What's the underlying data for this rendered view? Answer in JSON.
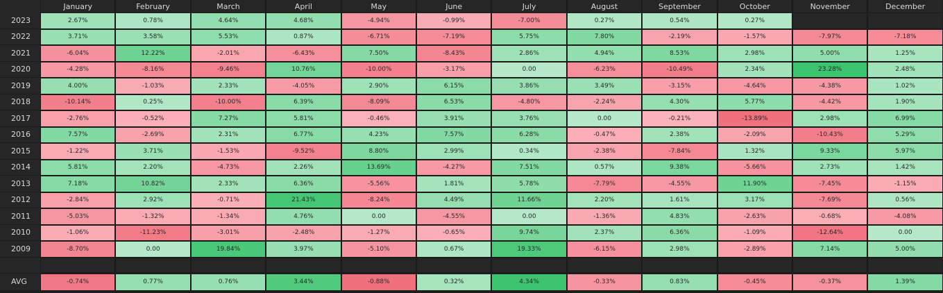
{
  "chart_data": {
    "type": "heatmap",
    "title": "",
    "columns": [
      "January",
      "February",
      "March",
      "April",
      "May",
      "June",
      "July",
      "August",
      "September",
      "October",
      "November",
      "December"
    ],
    "rows": [
      {
        "label": "2023",
        "values": [
          "2.67%",
          "0.78%",
          "4.64%",
          "4.68%",
          "-4.94%",
          "-0.99%",
          "-7.00%",
          "0.27%",
          "0.54%",
          "0.27%",
          null,
          null
        ]
      },
      {
        "label": "2022",
        "values": [
          "3.71%",
          "3.58%",
          "5.53%",
          "0.87%",
          "-6.71%",
          "-7.19%",
          "5.75%",
          "7.80%",
          "-2.19%",
          "-1.57%",
          "-7.97%",
          "-7.18%"
        ]
      },
      {
        "label": "2021",
        "values": [
          "-6.04%",
          "12.22%",
          "-2.01%",
          "-6.43%",
          "7.50%",
          "-8.43%",
          "2.86%",
          "4.94%",
          "8.53%",
          "2.98%",
          "5.00%",
          "1.25%"
        ]
      },
      {
        "label": "2020",
        "values": [
          "-4.28%",
          "-8.16%",
          "-9.46%",
          "10.76%",
          "-10.00%",
          "-3.17%",
          "0.00",
          "-6.23%",
          "-10.49%",
          "2.34%",
          "23.28%",
          "2.48%"
        ]
      },
      {
        "label": "2019",
        "values": [
          "4.00%",
          "-1.03%",
          "2.33%",
          "-4.05%",
          "2.90%",
          "6.15%",
          "3.86%",
          "3.49%",
          "-3.15%",
          "-4.64%",
          "-4.38%",
          "1.02%"
        ]
      },
      {
        "label": "2018",
        "values": [
          "-10.14%",
          "0.25%",
          "-10.00%",
          "6.39%",
          "-8.09%",
          "6.53%",
          "-4.80%",
          "-2.24%",
          "4.30%",
          "5.77%",
          "-4.42%",
          "1.90%"
        ]
      },
      {
        "label": "2017",
        "values": [
          "-2.76%",
          "-0.52%",
          "7.27%",
          "5.81%",
          "-0.46%",
          "3.91%",
          "3.76%",
          "0.00",
          "-0.21%",
          "-13.89%",
          "2.98%",
          "6.99%"
        ]
      },
      {
        "label": "2016",
        "values": [
          "7.57%",
          "-2.69%",
          "2.31%",
          "6.77%",
          "4.23%",
          "7.57%",
          "6.28%",
          "-0.47%",
          "2.38%",
          "-2.09%",
          "-10.43%",
          "5.29%"
        ]
      },
      {
        "label": "2015",
        "values": [
          "-1.22%",
          "3.71%",
          "-1.53%",
          "-9.52%",
          "8.80%",
          "2.99%",
          "0.34%",
          "-2.38%",
          "-7.84%",
          "1.32%",
          "9.33%",
          "5.97%"
        ]
      },
      {
        "label": "2014",
        "values": [
          "5.81%",
          "2.20%",
          "-4.73%",
          "2.26%",
          "13.69%",
          "-4.27%",
          "7.51%",
          "0.57%",
          "9.38%",
          "-5.66%",
          "2.73%",
          "1.42%"
        ]
      },
      {
        "label": "2013",
        "values": [
          "7.18%",
          "10.82%",
          "2.33%",
          "6.36%",
          "-5.56%",
          "1.81%",
          "5.78%",
          "-7.79%",
          "-4.55%",
          "11.90%",
          "-7.45%",
          "-1.15%"
        ]
      },
      {
        "label": "2012",
        "values": [
          "-2.84%",
          "2.92%",
          "-0.71%",
          "21.43%",
          "-8.24%",
          "4.49%",
          "11.66%",
          "2.20%",
          "1.61%",
          "3.17%",
          "-7.69%",
          "0.56%"
        ]
      },
      {
        "label": "2011",
        "values": [
          "-5.03%",
          "-1.32%",
          "-1.34%",
          "4.76%",
          "0.00",
          "-4.55%",
          "0.00",
          "-1.36%",
          "4.83%",
          "-2.63%",
          "-0.68%",
          "-4.08%"
        ]
      },
      {
        "label": "2010",
        "values": [
          "-1.06%",
          "-11.23%",
          "-3.01%",
          "-2.48%",
          "-1.27%",
          "-0.65%",
          "9.74%",
          "2.37%",
          "6.36%",
          "-1.09%",
          "-12.64%",
          "0.00"
        ]
      },
      {
        "label": "2009",
        "values": [
          "-8.70%",
          "0.00",
          "19.84%",
          "3.97%",
          "-5.10%",
          "0.67%",
          "19.33%",
          "-6.15%",
          "2.98%",
          "-2.89%",
          "7.14%",
          "5.00%"
        ]
      }
    ],
    "avg": {
      "label": "AVG",
      "values": [
        "-0.74%",
        "0.77%",
        "0.76%",
        "3.44%",
        "-0.88%",
        "0.32%",
        "4.34%",
        "-0.33%",
        "0.83%",
        "-0.45%",
        "-0.37%",
        "1.39%"
      ]
    },
    "colors": {
      "positive_light": "#b4e8c8",
      "positive_dark": "#3cc46e",
      "negative_light": "#fbb4bc",
      "negative_dark": "#f0707e",
      "zero": "#b4e8c8",
      "background": "#1e1e1e",
      "header_bg": "#262626",
      "header_text": "#d9d9d9"
    }
  }
}
